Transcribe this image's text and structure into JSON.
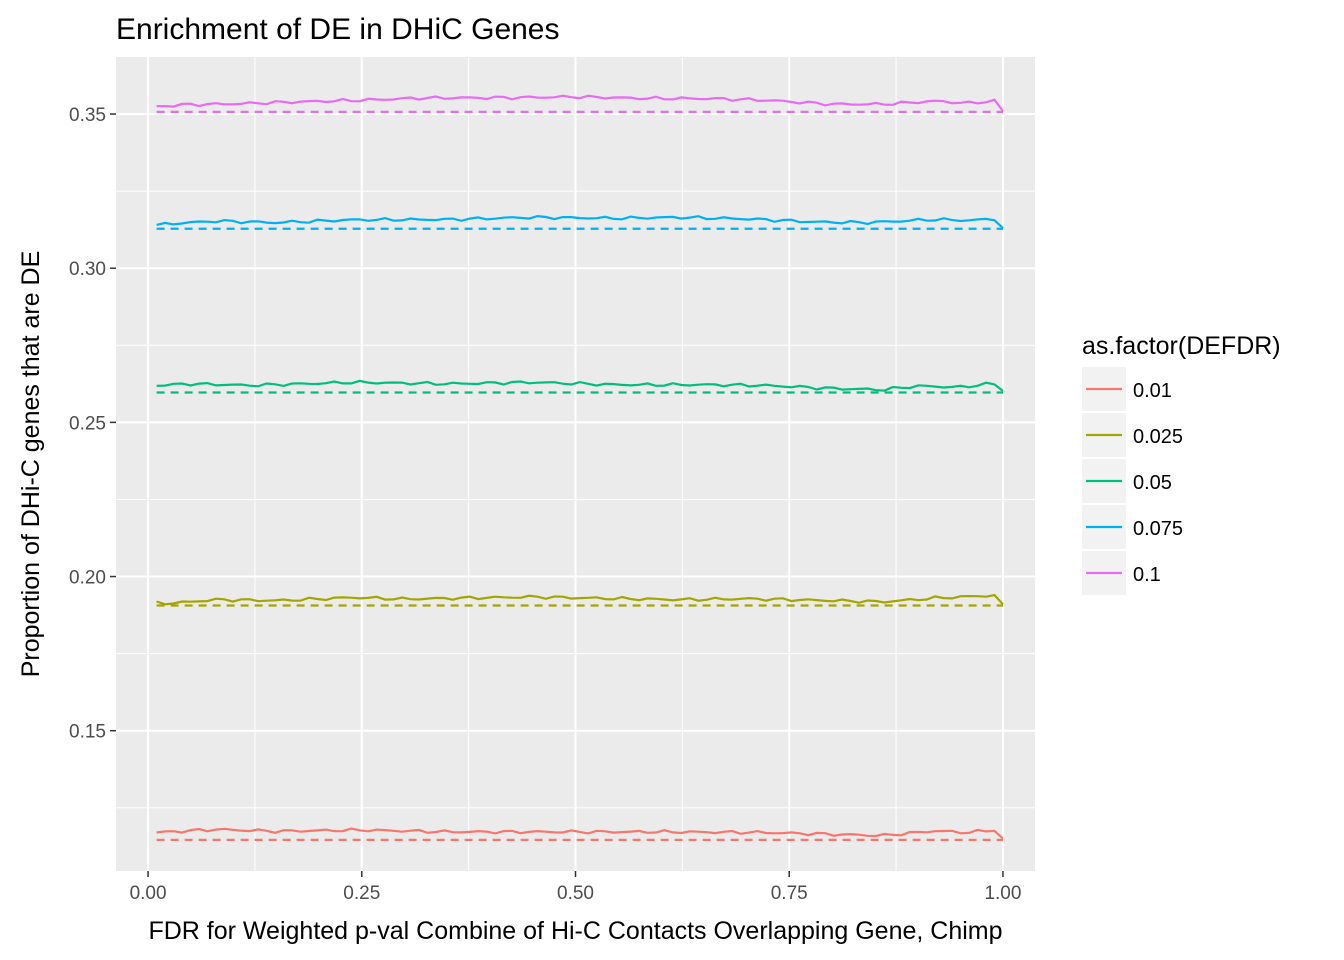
{
  "chart_data": {
    "type": "line",
    "title": "Enrichment of DE in DHiC Genes",
    "xlabel": "FDR for Weighted p-val Combine of Hi-C Contacts Overlapping Gene, Chimp",
    "ylabel": "Proportion of DHi-C genes that are DE",
    "xlim": [
      -0.0375,
      1.0375
    ],
    "ylim": [
      0.1045,
      0.3685
    ],
    "x_ticks": [
      0.0,
      0.25,
      0.5,
      0.75,
      1.0
    ],
    "x_tick_labels": [
      "0.00",
      "0.25",
      "0.50",
      "0.75",
      "1.00"
    ],
    "y_ticks": [
      0.15,
      0.2,
      0.25,
      0.3,
      0.35
    ],
    "y_tick_labels": [
      "0.15",
      "0.20",
      "0.25",
      "0.30",
      "0.35"
    ],
    "grid": true,
    "legend": {
      "title": "as.factor(DEFDR)",
      "position": "right"
    },
    "x_start": 0.01,
    "x_end": 1.0,
    "series": [
      {
        "name": "0.01",
        "color": "#F8766D",
        "baseline": 0.1146,
        "anchors": [
          [
            0.01,
            0.117
          ],
          [
            0.08,
            0.118
          ],
          [
            0.15,
            0.1174
          ],
          [
            0.25,
            0.1178
          ],
          [
            0.35,
            0.1172
          ],
          [
            0.45,
            0.1172
          ],
          [
            0.6,
            0.1172
          ],
          [
            0.72,
            0.117
          ],
          [
            0.8,
            0.1164
          ],
          [
            0.86,
            0.116
          ],
          [
            0.92,
            0.1175
          ],
          [
            0.96,
            0.117
          ],
          [
            0.99,
            0.1178
          ],
          [
            1.0,
            0.115
          ]
        ]
      },
      {
        "name": "0.025",
        "color": "#A3A500",
        "baseline": 0.1906,
        "anchors": [
          [
            0.01,
            0.1914
          ],
          [
            0.03,
            0.1914
          ],
          [
            0.08,
            0.1925
          ],
          [
            0.15,
            0.1922
          ],
          [
            0.24,
            0.1932
          ],
          [
            0.3,
            0.1927
          ],
          [
            0.45,
            0.1934
          ],
          [
            0.52,
            0.193
          ],
          [
            0.62,
            0.1925
          ],
          [
            0.7,
            0.1928
          ],
          [
            0.8,
            0.1922
          ],
          [
            0.86,
            0.1918
          ],
          [
            0.92,
            0.193
          ],
          [
            0.99,
            0.1939
          ],
          [
            1.0,
            0.191
          ]
        ]
      },
      {
        "name": "0.05",
        "color": "#00BF7D",
        "baseline": 0.2597,
        "anchors": [
          [
            0.01,
            0.262
          ],
          [
            0.05,
            0.2625
          ],
          [
            0.12,
            0.262
          ],
          [
            0.24,
            0.263
          ],
          [
            0.35,
            0.2625
          ],
          [
            0.45,
            0.263
          ],
          [
            0.55,
            0.2622
          ],
          [
            0.65,
            0.2622
          ],
          [
            0.72,
            0.262
          ],
          [
            0.8,
            0.261
          ],
          [
            0.86,
            0.2606
          ],
          [
            0.9,
            0.2618
          ],
          [
            0.95,
            0.2614
          ],
          [
            0.98,
            0.2624
          ],
          [
            0.995,
            0.2624
          ],
          [
            1.0,
            0.2602
          ]
        ]
      },
      {
        "name": "0.075",
        "color": "#00B0F6",
        "baseline": 0.3128,
        "anchors": [
          [
            0.01,
            0.314
          ],
          [
            0.03,
            0.3145
          ],
          [
            0.08,
            0.3153
          ],
          [
            0.15,
            0.3148
          ],
          [
            0.24,
            0.3157
          ],
          [
            0.35,
            0.3158
          ],
          [
            0.45,
            0.3165
          ],
          [
            0.55,
            0.3162
          ],
          [
            0.62,
            0.3165
          ],
          [
            0.7,
            0.316
          ],
          [
            0.78,
            0.315
          ],
          [
            0.84,
            0.3148
          ],
          [
            0.92,
            0.3158
          ],
          [
            0.96,
            0.3155
          ],
          [
            0.99,
            0.316
          ],
          [
            1.0,
            0.313
          ]
        ]
      },
      {
        "name": "0.1",
        "color": "#E76BF3",
        "baseline": 0.3507,
        "anchors": [
          [
            0.01,
            0.3524
          ],
          [
            0.04,
            0.353
          ],
          [
            0.1,
            0.3533
          ],
          [
            0.18,
            0.354
          ],
          [
            0.25,
            0.3545
          ],
          [
            0.32,
            0.3552
          ],
          [
            0.42,
            0.3553
          ],
          [
            0.5,
            0.3556
          ],
          [
            0.58,
            0.3551
          ],
          [
            0.66,
            0.355
          ],
          [
            0.72,
            0.3545
          ],
          [
            0.8,
            0.3532
          ],
          [
            0.86,
            0.3532
          ],
          [
            0.92,
            0.3542
          ],
          [
            0.96,
            0.3535
          ],
          [
            0.99,
            0.3543
          ],
          [
            1.0,
            0.351
          ]
        ]
      }
    ]
  }
}
